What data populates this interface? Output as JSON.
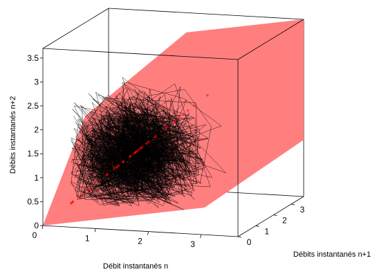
{
  "chart_data": {
    "type": "scatter",
    "subtype": "3d-trajectory-with-plane",
    "title": "",
    "xlabel": "Débit instantanés n",
    "ylabel": "Débits instantanés n+1",
    "zlabel": "Débits instantanés n+2",
    "xlim": [
      0,
      3.7
    ],
    "ylim": [
      0,
      3.7
    ],
    "zlim": [
      0,
      3.7
    ],
    "xticks": [
      "0",
      "1",
      "2",
      "3"
    ],
    "yticks": [
      "0",
      "1",
      "2",
      "3"
    ],
    "zticks": [
      "0",
      "0.5",
      "1",
      "1.5",
      "2",
      "2.5",
      "3",
      "3.5"
    ],
    "plane_color": "#ff7f7f",
    "trajectory_color": "#000000",
    "marker_color": "#ff0000",
    "grid": false,
    "box": true,
    "trajectory": {
      "count": 1800,
      "center": [
        1.3,
        1.3,
        1.3
      ],
      "spread": [
        0.55,
        0.55,
        0.55
      ],
      "min": 0.4,
      "max": 2.85
    }
  }
}
